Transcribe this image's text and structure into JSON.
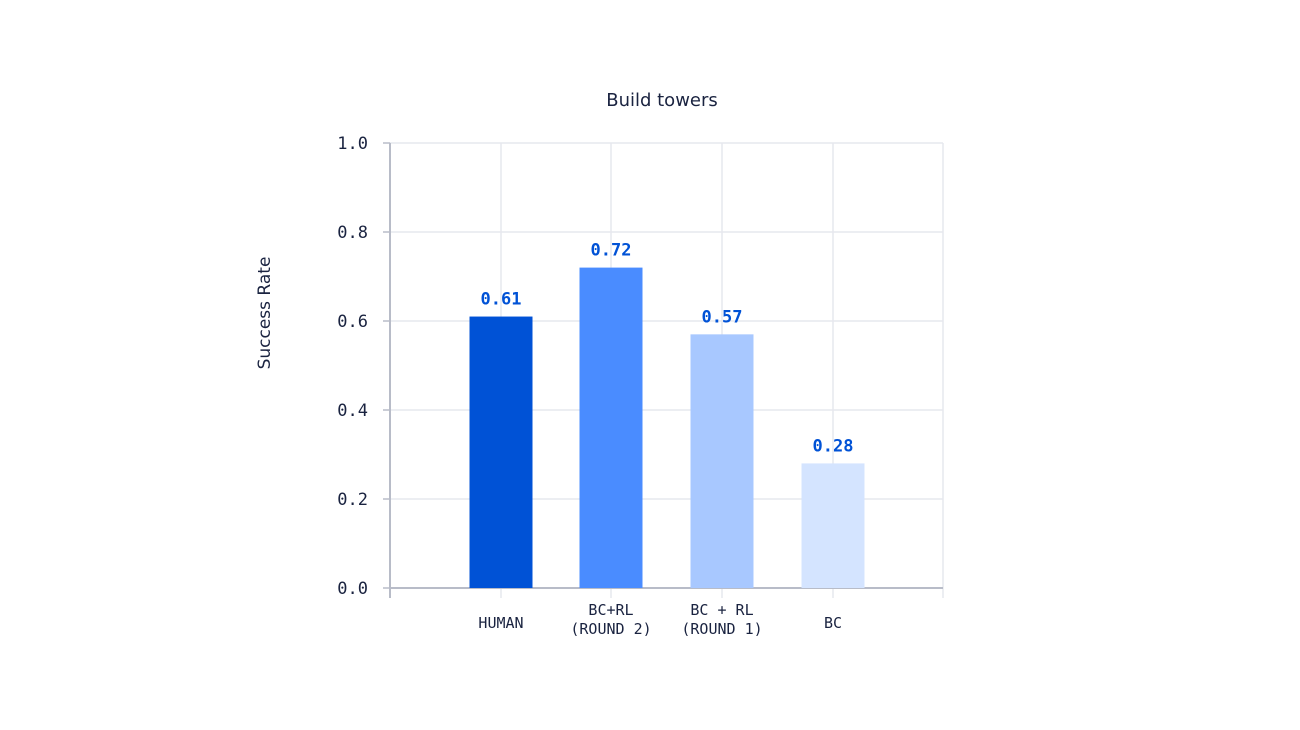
{
  "chart_data": {
    "type": "bar",
    "title": "Build towers",
    "xlabel": "",
    "ylabel": "Success Rate",
    "ylim": [
      0,
      1.0
    ],
    "yticks": [
      "0.0",
      "0.2",
      "0.4",
      "0.6",
      "0.8",
      "1.0"
    ],
    "grid": true,
    "categories": [
      [
        "HUMAN"
      ],
      [
        "BC+RL",
        "(ROUND 2)"
      ],
      [
        "BC + RL",
        "(ROUND 1)"
      ],
      [
        "BC"
      ]
    ],
    "values": [
      0.61,
      0.72,
      0.57,
      0.28
    ],
    "data_labels": [
      "0.61",
      "0.72",
      "0.57",
      "0.28"
    ],
    "colors": [
      "#0052d6",
      "#4a8cff",
      "#a8c8ff",
      "#d4e4ff"
    ],
    "label_color": "#0052d6"
  }
}
